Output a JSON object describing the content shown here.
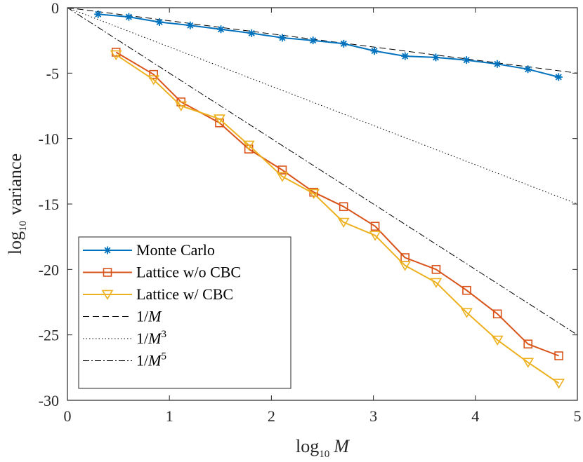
{
  "chart_data": {
    "type": "line",
    "title": "",
    "xlabel": {
      "base": "log",
      "sub": "10",
      "var": "M"
    },
    "ylabel": {
      "base": "log",
      "sub": "10",
      "rest": "variance"
    },
    "xlim": [
      0,
      5
    ],
    "ylim": [
      -30,
      0
    ],
    "xticks": [
      0,
      1,
      2,
      3,
      4,
      5
    ],
    "xtick_labels": [
      "0",
      "1",
      "2",
      "3",
      "4",
      "5"
    ],
    "yticks": [
      0,
      -5,
      -10,
      -15,
      -20,
      -25,
      -30
    ],
    "ytick_labels": [
      "0",
      "-5",
      "-10",
      "-15",
      "-20",
      "-25",
      "-30"
    ],
    "grid": false,
    "legend_position": "bottom-left",
    "series": [
      {
        "name": "Monte Carlo",
        "color": "#0072BD",
        "marker": "asterisk",
        "x": [
          0.301,
          0.602,
          0.903,
          1.204,
          1.505,
          1.806,
          2.107,
          2.408,
          2.709,
          3.01,
          3.311,
          3.612,
          3.913,
          4.214,
          4.515,
          4.816
        ],
        "y": [
          -0.5,
          -0.7,
          -1.1,
          -1.35,
          -1.65,
          -1.95,
          -2.3,
          -2.5,
          -2.75,
          -3.3,
          -3.7,
          -3.8,
          -4.0,
          -4.3,
          -4.7,
          -5.3
        ]
      },
      {
        "name": "Lattice w/o CBC",
        "color": "#D95319",
        "marker": "square",
        "x": [
          0.477,
          0.845,
          1.114,
          1.491,
          1.778,
          2.107,
          2.415,
          2.708,
          3.017,
          3.31,
          3.615,
          3.915,
          4.216,
          4.516,
          4.818
        ],
        "y": [
          -3.4,
          -5.1,
          -7.2,
          -8.8,
          -10.8,
          -12.4,
          -14.1,
          -15.2,
          -16.7,
          -19.1,
          -20.0,
          -21.6,
          -23.4,
          -25.7,
          -26.6
        ]
      },
      {
        "name": "Lattice w/ CBC",
        "color": "#EDB120",
        "marker": "triangle-down",
        "x": [
          0.477,
          0.845,
          1.114,
          1.491,
          1.778,
          2.107,
          2.415,
          2.708,
          3.017,
          3.31,
          3.615,
          3.915,
          4.216,
          4.516,
          4.818
        ],
        "y": [
          -3.6,
          -5.5,
          -7.5,
          -8.5,
          -10.5,
          -12.9,
          -14.2,
          -16.4,
          -17.4,
          -19.7,
          -21.0,
          -23.3,
          -25.4,
          -27.1,
          -28.7
        ]
      }
    ],
    "reference_lines": [
      {
        "name": "1/M",
        "label": {
          "pre": "1/",
          "var": "M",
          "sup": ""
        },
        "slope": -1,
        "dash": "9,5",
        "color": "#000000"
      },
      {
        "name": "1/M^3",
        "label": {
          "pre": "1/",
          "var": "M",
          "sup": "3"
        },
        "slope": -3,
        "dash": "1.5,3",
        "color": "#000000"
      },
      {
        "name": "1/M^5",
        "label": {
          "pre": "1/",
          "var": "M",
          "sup": "5"
        },
        "slope": -5,
        "dash": "9,3,2,3",
        "color": "#000000"
      }
    ]
  }
}
